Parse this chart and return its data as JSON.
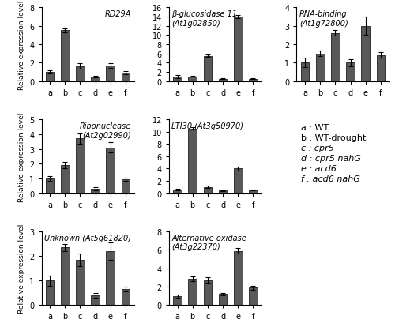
{
  "panels": [
    {
      "title": "RD29A",
      "title_loc": "upper right",
      "ylim": [
        0,
        8
      ],
      "yticks": [
        0,
        2,
        4,
        6,
        8
      ],
      "values": [
        1.0,
        5.5,
        1.6,
        0.5,
        1.7,
        0.9
      ],
      "errors": [
        0.2,
        0.2,
        0.3,
        0.1,
        0.25,
        0.15
      ],
      "ylabel": true,
      "row": 0,
      "col": 0
    },
    {
      "title": "β-glucosidase 11\n(At1g02850)",
      "title_loc": "upper left",
      "ylim": [
        0,
        16
      ],
      "yticks": [
        0,
        2,
        4,
        6,
        8,
        10,
        12,
        14,
        16
      ],
      "values": [
        1.0,
        1.0,
        5.5,
        0.5,
        14.0,
        0.5
      ],
      "errors": [
        0.3,
        0.1,
        0.2,
        0.1,
        0.3,
        0.1
      ],
      "ylabel": false,
      "row": 0,
      "col": 1
    },
    {
      "title": "RNA-binding\n(At1g72800)",
      "title_loc": "upper left",
      "ylim": [
        0,
        4
      ],
      "yticks": [
        0,
        1,
        2,
        3,
        4
      ],
      "values": [
        1.0,
        1.5,
        2.6,
        1.0,
        3.0,
        1.4
      ],
      "errors": [
        0.25,
        0.15,
        0.15,
        0.2,
        0.5,
        0.15
      ],
      "ylabel": false,
      "row": 0,
      "col": 2
    },
    {
      "title": "Ribonuclease\n(At2g02990)",
      "title_loc": "upper right",
      "ylim": [
        0,
        5
      ],
      "yticks": [
        0,
        1,
        2,
        3,
        4,
        5
      ],
      "values": [
        1.0,
        1.9,
        3.7,
        0.3,
        3.1,
        0.95
      ],
      "errors": [
        0.15,
        0.2,
        0.35,
        0.1,
        0.35,
        0.1
      ],
      "ylabel": true,
      "row": 1,
      "col": 0
    },
    {
      "title": "LTI30 (At3g50970)",
      "title_loc": "upper left",
      "ylim": [
        0,
        12
      ],
      "yticks": [
        0,
        2,
        4,
        6,
        8,
        10,
        12
      ],
      "values": [
        0.6,
        10.5,
        1.0,
        0.4,
        4.0,
        0.5
      ],
      "errors": [
        0.1,
        0.2,
        0.2,
        0.1,
        0.35,
        0.1
      ],
      "ylabel": false,
      "row": 1,
      "col": 1
    },
    {
      "title": "Unknown (At5g61820)",
      "title_loc": "upper left",
      "ylim": [
        0,
        3
      ],
      "yticks": [
        0,
        1,
        2,
        3
      ],
      "values": [
        1.0,
        2.35,
        1.85,
        0.4,
        2.2,
        0.65
      ],
      "errors": [
        0.2,
        0.15,
        0.25,
        0.1,
        0.35,
        0.1
      ],
      "ylabel": true,
      "row": 2,
      "col": 0
    },
    {
      "title": "Alternative oxidase\n(At3g22370)",
      "title_loc": "upper left",
      "ylim": [
        0,
        8
      ],
      "yticks": [
        0,
        2,
        4,
        6,
        8
      ],
      "values": [
        1.0,
        2.9,
        2.7,
        1.2,
        5.9,
        1.9
      ],
      "errors": [
        0.15,
        0.25,
        0.3,
        0.15,
        0.3,
        0.2
      ],
      "ylabel": false,
      "row": 2,
      "col": 1
    }
  ],
  "legend_lines": [
    "a : WT",
    "b : WT-drought",
    "c : cpr5",
    "d : cpr5 nahG",
    "e : acd6",
    "f : acd6 nahG"
  ],
  "legend_italic": [
    false,
    false,
    true,
    true,
    true,
    true
  ],
  "categories": [
    "a",
    "b",
    "c",
    "d",
    "e",
    "f"
  ],
  "bar_color": "#595959",
  "bar_width": 0.55,
  "ylabel_text": "Relative expression level",
  "figure_bg": "#ffffff",
  "title_fontsize": 7.0,
  "tick_fontsize": 7.0,
  "ylabel_fontsize": 6.5,
  "legend_fontsize": 8.0
}
